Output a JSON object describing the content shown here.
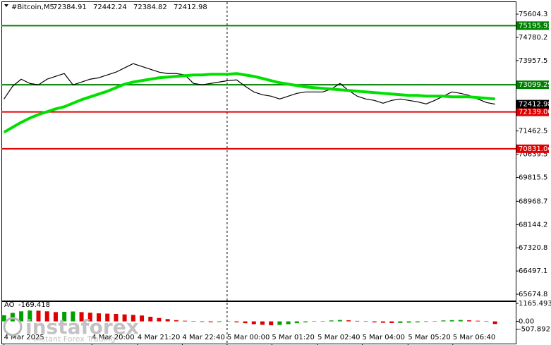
{
  "chart_data": {
    "type": "line",
    "title": "#Bitcoin,M5",
    "ohlc": [
      72384.91,
      72442.24,
      72384.82,
      72412.98
    ],
    "xlim": [
      -0.3,
      59.4
    ],
    "ylim": [
      65450,
      76030
    ],
    "yticks": [
      75604.3,
      74780.2,
      73957.5,
      71462.5,
      70639.5,
      69815.5,
      68968.7,
      68144.2,
      67320.8,
      66497.1,
      65674.8
    ],
    "xticks": [
      {
        "value": 0,
        "label": "4 Mar 2025"
      },
      {
        "value": 10.2,
        "label": "4 Mar 20:00"
      },
      {
        "value": 15.5,
        "label": "4 Mar 21:20"
      },
      {
        "value": 20.7,
        "label": "4 Mar 22:40"
      },
      {
        "value": 25.9,
        "label": "5 Mar 00:00"
      },
      {
        "value": 31.1,
        "label": "5 Mar 01:20"
      },
      {
        "value": 36.4,
        "label": "5 Mar 02:40"
      },
      {
        "value": 41.6,
        "label": "5 Mar 04:00"
      },
      {
        "value": 46.9,
        "label": "5 Mar 05:20"
      },
      {
        "value": 52.1,
        "label": "5 Mar 06:40"
      }
    ],
    "vline": 25.9,
    "series": [
      {
        "color": "#000000",
        "width": 1.2,
        "values": [
          72596,
          73047,
          73298,
          73147,
          73097,
          73298,
          73398,
          73498,
          73097,
          73197,
          73298,
          73348,
          73448,
          73548,
          73699,
          73849,
          73749,
          73649,
          73548,
          73498,
          73498,
          73448,
          73147,
          73097,
          73147,
          73197,
          73247,
          73272,
          73047,
          72846,
          72746,
          72696,
          72596,
          72696,
          72796,
          72846,
          72846,
          72846,
          72947,
          73147,
          72896,
          72696,
          72596,
          72545,
          72445,
          72545,
          72596,
          72545,
          72495,
          72420,
          72545,
          72696,
          72846,
          72796,
          72721,
          72596,
          72470,
          72412.98
        ]
      },
      {
        "color": "#00e000",
        "width": 4,
        "values": [
          71417,
          71593,
          71768,
          71919,
          72044,
          72144,
          72245,
          72320,
          72445,
          72571,
          72671,
          72771,
          72871,
          72997,
          73122,
          73197,
          73247,
          73298,
          73348,
          73373,
          73398,
          73423,
          73448,
          73448,
          73473,
          73473,
          73473,
          73498,
          73448,
          73398,
          73323,
          73247,
          73172,
          73122,
          73072,
          73022,
          72997,
          72972,
          72947,
          72922,
          72896,
          72871,
          72846,
          72821,
          72796,
          72771,
          72746,
          72721,
          72721,
          72696,
          72696,
          72696,
          72671,
          72671,
          72671,
          72646,
          72621,
          72596
        ]
      }
    ],
    "levels": [
      {
        "value": 75195.93,
        "color": "#008000"
      },
      {
        "value": 73099.29,
        "color": "#008000"
      },
      {
        "value": {
          "value": 72139,
          "label": "72139.00"
        },
        "color": "#e00000"
      },
      {
        "value": 70831.06,
        "color": "#e00000"
      }
    ],
    "ao": {
      "name": "AO",
      "ylim": [
        -1434,
        1255
      ],
      "yticks": [
        1165.493,
        {
          "value": 0,
          "label": "0.00"
        },
        -507.892
      ],
      "colors": [
        "#00a000",
        "#e00000"
      ],
      "values": [
        400,
        550,
        650,
        700,
        690,
        650,
        600,
        620,
        640,
        600,
        560,
        520,
        500,
        480,
        450,
        420,
        380,
        300,
        220,
        150,
        80,
        40,
        10,
        -30,
        -50,
        -40,
        -20,
        -60,
        -120,
        -180,
        -220,
        -250,
        -230,
        -180,
        -120,
        -60,
        -20,
        20,
        60,
        90,
        70,
        30,
        -20,
        -60,
        -90,
        -110,
        -100,
        -80,
        -60,
        -30,
        20,
        60,
        80,
        90,
        70,
        40,
        0,
        -169.418
      ]
    },
    "watermark": {
      "brand": "instaforex",
      "tagline": "Instant Forex Trading"
    }
  }
}
